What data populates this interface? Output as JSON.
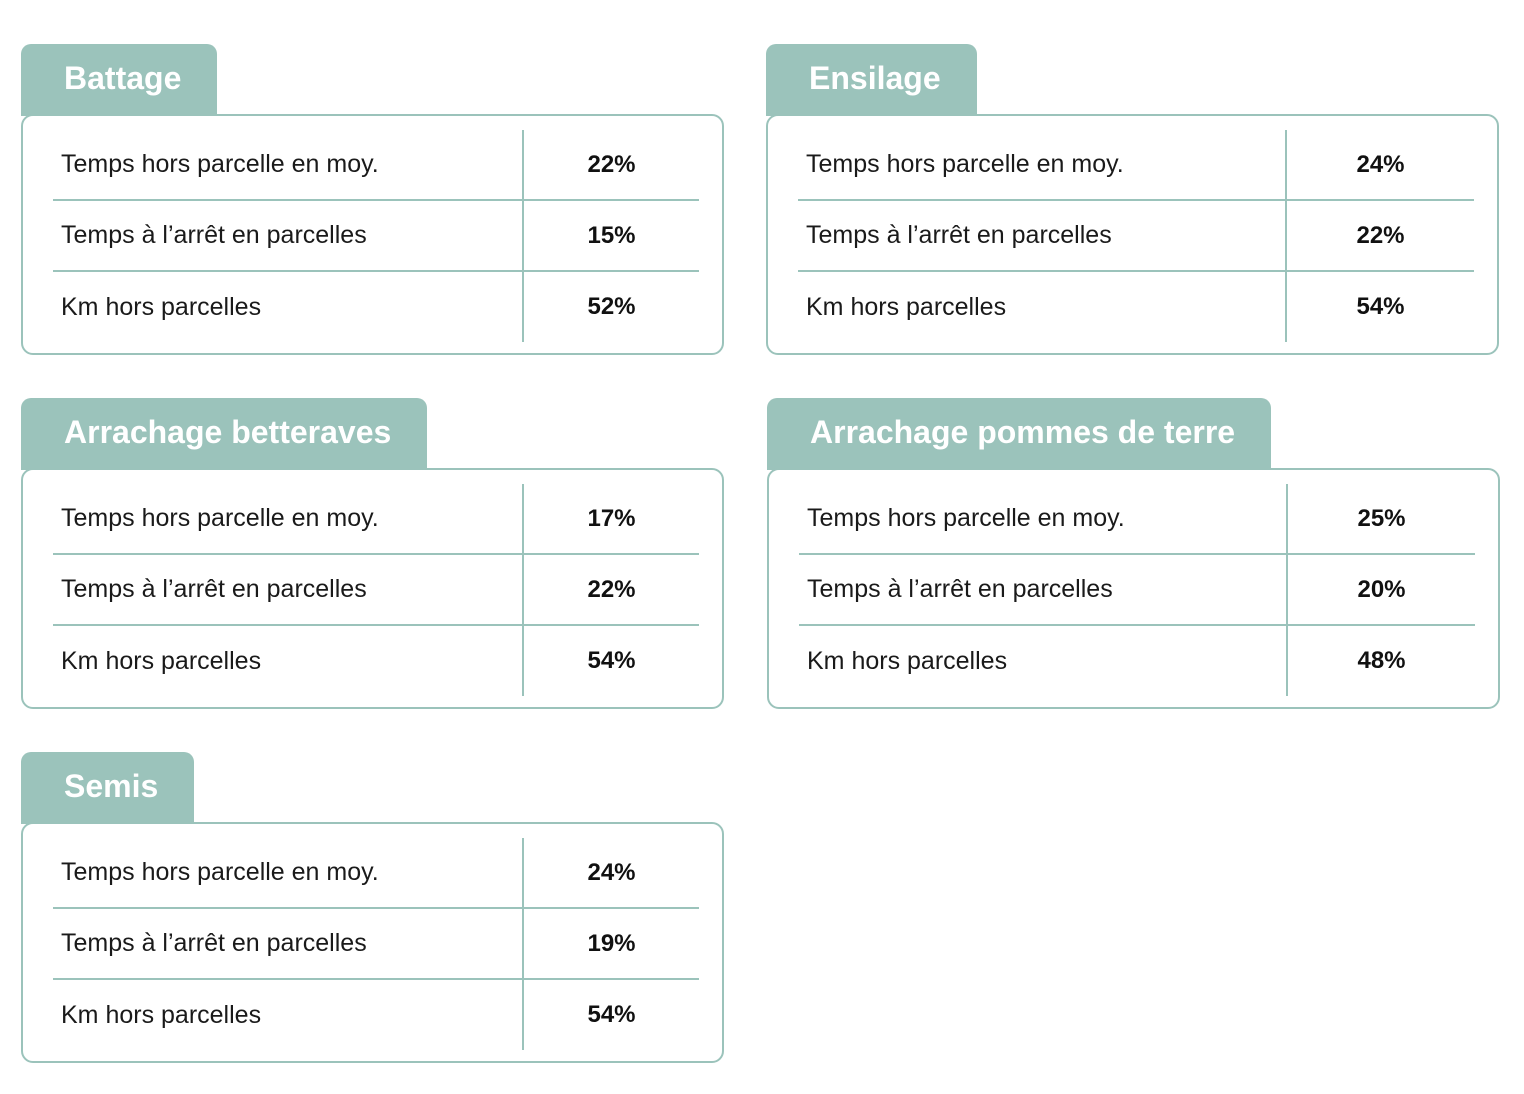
{
  "cards": [
    {
      "title": "Battage",
      "rows": [
        {
          "label": "Temps hors parcelle en moy.",
          "value": "22%"
        },
        {
          "label": "Temps à l’arrêt en parcelles",
          "value": "15%"
        },
        {
          "label": "Km hors parcelles",
          "value": "52%"
        }
      ]
    },
    {
      "title": "Ensilage",
      "rows": [
        {
          "label": "Temps hors parcelle en moy.",
          "value": "24%"
        },
        {
          "label": "Temps à l’arrêt en parcelles",
          "value": "22%"
        },
        {
          "label": "Km hors parcelles",
          "value": "54%"
        }
      ]
    },
    {
      "title": "Arrachage betteraves",
      "rows": [
        {
          "label": "Temps hors parcelle en moy.",
          "value": "17%"
        },
        {
          "label": "Temps à l’arrêt en parcelles",
          "value": "22%"
        },
        {
          "label": "Km hors parcelles",
          "value": "54%"
        }
      ]
    },
    {
      "title": "Arrachage pommes de terre",
      "rows": [
        {
          "label": "Temps hors parcelle en moy.",
          "value": "25%"
        },
        {
          "label": "Temps à l’arrêt en parcelles",
          "value": "20%"
        },
        {
          "label": "Km hors parcelles",
          "value": "48%"
        }
      ]
    },
    {
      "title": "Semis",
      "rows": [
        {
          "label": "Temps hors parcelle en moy.",
          "value": "24%"
        },
        {
          "label": "Temps à l’arrêt en parcelles",
          "value": "19%"
        },
        {
          "label": "Km hors parcelles",
          "value": "54%"
        }
      ]
    }
  ],
  "colors": {
    "accent": "#9bc3bb",
    "text": "#1a1a1a",
    "background": "#ffffff"
  }
}
